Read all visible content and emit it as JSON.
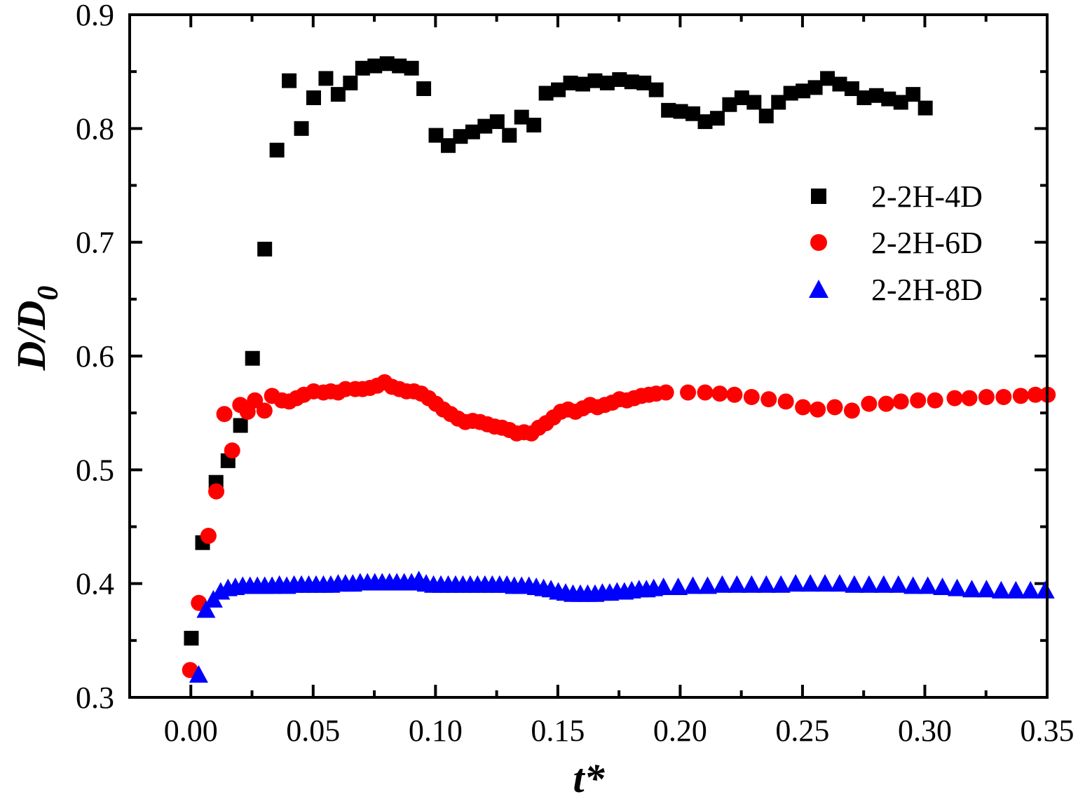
{
  "chart_data": {
    "type": "scatter",
    "xlabel": "t*",
    "ylabel_main": "D/D",
    "ylabel_sub": "0",
    "xlim": [
      -0.025,
      0.35
    ],
    "ylim": [
      0.3,
      0.9
    ],
    "xticks": [
      0.0,
      0.05,
      0.1,
      0.15,
      0.2,
      0.25,
      0.3,
      0.35
    ],
    "xtick_labels": [
      "0.00",
      "0.05",
      "0.10",
      "0.15",
      "0.20",
      "0.25",
      "0.30",
      "0.35"
    ],
    "yticks": [
      0.3,
      0.4,
      0.5,
      0.6,
      0.7,
      0.8,
      0.9
    ],
    "ytick_labels": [
      "0.3",
      "0.4",
      "0.5",
      "0.6",
      "0.7",
      "0.8",
      "0.9"
    ],
    "grid": false,
    "legend_position": "right",
    "series": [
      {
        "name": "2-2H-4D",
        "marker": "square",
        "color": "#000000",
        "x": [
          0.0002,
          0.0048,
          0.0103,
          0.0152,
          0.0203,
          0.0252,
          0.0302,
          0.0352,
          0.0402,
          0.0452,
          0.0502,
          0.0552,
          0.0602,
          0.0652,
          0.0702,
          0.0752,
          0.0802,
          0.0852,
          0.0902,
          0.0952,
          0.1002,
          0.1052,
          0.1102,
          0.1152,
          0.1202,
          0.1252,
          0.1302,
          0.1352,
          0.1402,
          0.1452,
          0.1502,
          0.1552,
          0.1602,
          0.1652,
          0.1702,
          0.1752,
          0.1802,
          0.1852,
          0.1902,
          0.1952,
          0.2002,
          0.2052,
          0.2102,
          0.2152,
          0.2202,
          0.2252,
          0.2302,
          0.2352,
          0.2402,
          0.2452,
          0.2502,
          0.2552,
          0.2602,
          0.2652,
          0.2702,
          0.2752,
          0.2802,
          0.2852,
          0.2902,
          0.2952,
          0.3002
        ],
        "y": [
          0.352,
          0.436,
          0.489,
          0.508,
          0.539,
          0.598,
          0.694,
          0.781,
          0.842,
          0.8,
          0.827,
          0.844,
          0.83,
          0.84,
          0.853,
          0.855,
          0.857,
          0.855,
          0.853,
          0.835,
          0.794,
          0.785,
          0.793,
          0.797,
          0.802,
          0.806,
          0.794,
          0.81,
          0.803,
          0.831,
          0.834,
          0.84,
          0.839,
          0.842,
          0.84,
          0.843,
          0.841,
          0.84,
          0.834,
          0.816,
          0.815,
          0.813,
          0.806,
          0.809,
          0.821,
          0.827,
          0.823,
          0.811,
          0.823,
          0.831,
          0.833,
          0.836,
          0.844,
          0.839,
          0.835,
          0.827,
          0.829,
          0.826,
          0.823,
          0.83,
          0.818
        ]
      },
      {
        "name": "2-2H-6D",
        "marker": "circle",
        "color": "#ff0000",
        "x": [
          -0.0003,
          0.0033,
          0.0072,
          0.0104,
          0.0137,
          0.0169,
          0.0202,
          0.0232,
          0.0262,
          0.0301,
          0.0332,
          0.0372,
          0.0402,
          0.0432,
          0.0462,
          0.0502,
          0.0542,
          0.0572,
          0.0602,
          0.0632,
          0.0672,
          0.0702,
          0.0732,
          0.0762,
          0.0792,
          0.0822,
          0.0852,
          0.0882,
          0.0912,
          0.0942,
          0.0972,
          0.1002,
          0.1032,
          0.1062,
          0.1092,
          0.1122,
          0.1152,
          0.1182,
          0.1212,
          0.1242,
          0.1272,
          0.1302,
          0.1332,
          0.1362,
          0.1392,
          0.1422,
          0.1452,
          0.1482,
          0.1512,
          0.1542,
          0.1572,
          0.1602,
          0.1632,
          0.1662,
          0.1692,
          0.1722,
          0.1752,
          0.1782,
          0.1812,
          0.1842,
          0.1872,
          0.1902,
          0.1942,
          0.2032,
          0.2102,
          0.2162,
          0.2222,
          0.2292,
          0.2362,
          0.2432,
          0.2502,
          0.2562,
          0.2632,
          0.2702,
          0.2772,
          0.2842,
          0.2902,
          0.2972,
          0.3042,
          0.3122,
          0.3182,
          0.3252,
          0.3322,
          0.3392,
          0.3452,
          0.3502
        ],
        "y": [
          0.324,
          0.383,
          0.442,
          0.481,
          0.549,
          0.517,
          0.557,
          0.551,
          0.561,
          0.552,
          0.565,
          0.561,
          0.56,
          0.563,
          0.566,
          0.569,
          0.568,
          0.569,
          0.568,
          0.571,
          0.571,
          0.571,
          0.572,
          0.574,
          0.577,
          0.573,
          0.571,
          0.569,
          0.569,
          0.567,
          0.563,
          0.558,
          0.553,
          0.549,
          0.545,
          0.542,
          0.543,
          0.542,
          0.54,
          0.538,
          0.537,
          0.535,
          0.532,
          0.533,
          0.532,
          0.537,
          0.541,
          0.546,
          0.551,
          0.553,
          0.551,
          0.554,
          0.557,
          0.555,
          0.557,
          0.559,
          0.562,
          0.561,
          0.563,
          0.565,
          0.566,
          0.567,
          0.568,
          0.568,
          0.568,
          0.567,
          0.566,
          0.564,
          0.562,
          0.56,
          0.555,
          0.553,
          0.555,
          0.552,
          0.558,
          0.558,
          0.56,
          0.561,
          0.561,
          0.563,
          0.563,
          0.564,
          0.564,
          0.565,
          0.566,
          0.566
        ]
      },
      {
        "name": "2-2H-8D",
        "marker": "triangle",
        "color": "#0000ff",
        "x": [
          0.0032,
          0.0062,
          0.0092,
          0.0122,
          0.0152,
          0.0182,
          0.0212,
          0.0242,
          0.0272,
          0.0302,
          0.0332,
          0.0362,
          0.0392,
          0.0422,
          0.0452,
          0.0482,
          0.0512,
          0.0542,
          0.0572,
          0.0602,
          0.0632,
          0.0662,
          0.0692,
          0.0722,
          0.0752,
          0.0782,
          0.0812,
          0.0842,
          0.0872,
          0.0902,
          0.0932,
          0.0962,
          0.0992,
          0.1022,
          0.1052,
          0.1082,
          0.1112,
          0.1142,
          0.1172,
          0.1202,
          0.1232,
          0.1262,
          0.1292,
          0.1322,
          0.1352,
          0.1382,
          0.1412,
          0.1442,
          0.1472,
          0.1502,
          0.1532,
          0.1562,
          0.1592,
          0.1622,
          0.1652,
          0.1682,
          0.1712,
          0.1742,
          0.1772,
          0.1802,
          0.1832,
          0.1862,
          0.1892,
          0.1932,
          0.1992,
          0.2052,
          0.2112,
          0.2172,
          0.2232,
          0.2292,
          0.2352,
          0.2412,
          0.2472,
          0.2532,
          0.2592,
          0.2652,
          0.2712,
          0.2772,
          0.2832,
          0.2892,
          0.2952,
          0.3012,
          0.3072,
          0.3132,
          0.3192,
          0.3252,
          0.3312,
          0.3372,
          0.3432,
          0.3492
        ],
        "y": [
          0.32,
          0.377,
          0.386,
          0.393,
          0.396,
          0.397,
          0.398,
          0.398,
          0.398,
          0.398,
          0.398,
          0.399,
          0.398,
          0.399,
          0.399,
          0.399,
          0.399,
          0.399,
          0.399,
          0.4,
          0.4,
          0.4,
          0.401,
          0.401,
          0.401,
          0.401,
          0.401,
          0.401,
          0.401,
          0.401,
          0.403,
          0.4,
          0.399,
          0.399,
          0.399,
          0.399,
          0.399,
          0.399,
          0.399,
          0.399,
          0.399,
          0.399,
          0.399,
          0.398,
          0.398,
          0.398,
          0.397,
          0.396,
          0.395,
          0.393,
          0.392,
          0.391,
          0.391,
          0.391,
          0.391,
          0.392,
          0.392,
          0.393,
          0.393,
          0.394,
          0.395,
          0.395,
          0.396,
          0.397,
          0.397,
          0.398,
          0.398,
          0.399,
          0.399,
          0.399,
          0.399,
          0.399,
          0.4,
          0.4,
          0.4,
          0.4,
          0.399,
          0.399,
          0.399,
          0.399,
          0.398,
          0.398,
          0.397,
          0.396,
          0.395,
          0.395,
          0.394,
          0.394,
          0.394,
          0.394
        ]
      }
    ]
  }
}
